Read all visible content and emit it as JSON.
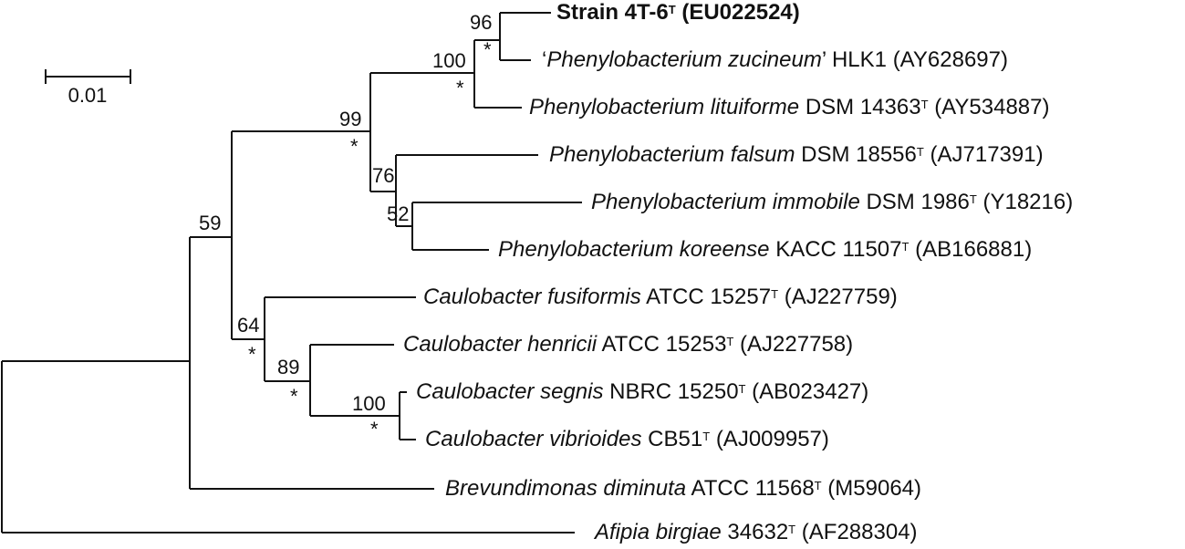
{
  "scale_bar": {
    "value": 0.01,
    "label": "0.01"
  },
  "taxa": [
    {
      "id": "t1",
      "name": "Strain 4T-6",
      "type_strain": true,
      "accession": "(EU022524)",
      "bold": true
    },
    {
      "id": "t2",
      "genus_species": "Phenylobacterium zucineum",
      "quoted": true,
      "strain": "HLK1",
      "type_strain": false,
      "accession": "(AY628697)",
      "open_quote": "‘",
      "close_quote": "’"
    },
    {
      "id": "t3",
      "genus_species": "Phenylobacterium lituiforme",
      "strain": "DSM 14363",
      "type_strain": true,
      "accession": "(AY534887)"
    },
    {
      "id": "t4",
      "genus_species": "Phenylobacterium falsum",
      "strain": "DSM 18556",
      "type_strain": true,
      "accession": "(AJ717391)"
    },
    {
      "id": "t5",
      "genus_species": "Phenylobacterium immobile",
      "strain": "DSM 1986",
      "type_strain": true,
      "accession": "(Y18216)"
    },
    {
      "id": "t6",
      "genus_species": "Phenylobacterium koreense",
      "strain": "KACC 11507",
      "type_strain": true,
      "accession": "(AB166881)"
    },
    {
      "id": "t7",
      "genus_species": "Caulobacter fusiformis",
      "strain": "ATCC 15257",
      "type_strain": true,
      "accession": "(AJ227759)"
    },
    {
      "id": "t8",
      "genus_species": "Caulobacter henricii",
      "strain": "ATCC 15253",
      "type_strain": true,
      "accession": "(AJ227758)"
    },
    {
      "id": "t9",
      "genus_species": "Caulobacter segnis",
      "strain": "NBRC 15250",
      "type_strain": true,
      "accession": "(AB023427)"
    },
    {
      "id": "t10",
      "genus_species": "Caulobacter vibrioides",
      "strain": "CB51",
      "type_strain": true,
      "accession": "(AJ009957)"
    },
    {
      "id": "t11",
      "genus_species": "Brevundimonas diminuta",
      "strain": "ATCC 11568",
      "type_strain": true,
      "accession": "(M59064)"
    },
    {
      "id": "t12",
      "genus_species": "Afipia birgiae",
      "strain": "34632",
      "type_strain": true,
      "accession": "(AF288304)"
    }
  ],
  "type_strain_marker": "T",
  "nodes": [
    {
      "id": "n_t1_t2",
      "bootstrap": "96",
      "starred": true
    },
    {
      "id": "n_t1_t3",
      "bootstrap": "100",
      "starred": true
    },
    {
      "id": "n_phenyl",
      "bootstrap": "99",
      "starred": true
    },
    {
      "id": "n_t4_t6",
      "bootstrap": "76",
      "starred": false
    },
    {
      "id": "n_t5_t6",
      "bootstrap": "52",
      "starred": false
    },
    {
      "id": "n_ingroup",
      "bootstrap": "59",
      "starred": false
    },
    {
      "id": "n_caulo",
      "bootstrap": "64",
      "starred": true
    },
    {
      "id": "n_t8_t10",
      "bootstrap": "89",
      "starred": true
    },
    {
      "id": "n_t9_t10",
      "bootstrap": "100",
      "starred": true
    },
    {
      "id": "root",
      "bootstrap": "",
      "starred": false
    }
  ],
  "star_symbol": "*"
}
